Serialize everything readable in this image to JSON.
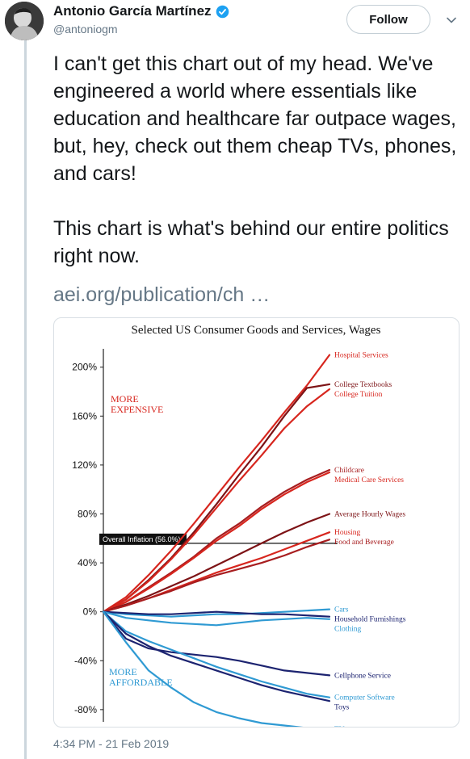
{
  "tweet": {
    "author": {
      "display_name": "Antonio García Martínez",
      "handle": "@antoniogm",
      "avatar_icon": "avatar-portrait",
      "verified_icon": "verified-badge-icon",
      "verified_color": "#1da1f2"
    },
    "follow_label": "Follow",
    "more_icon": "chevron-down-icon",
    "text_paragraphs": [
      "I can't get this chart out of my head. We've engineered a world where essentials like education and healthcare far outpace wages, but, hey, check out them cheap TVs, phones, and cars!",
      "This chart is what's behind our entire politics right now."
    ],
    "link_text": "aei.org/publication/ch …",
    "timestamp": "4:34 PM - 21 Feb 2019"
  },
  "chart_data": {
    "type": "line",
    "title": "Selected US Consumer Goods and Services, Wages",
    "ylim": [
      -90,
      215
    ],
    "yticks": [
      "200%",
      "160%",
      "120%",
      "80%",
      "40%",
      "0%",
      "-40%",
      "-80%"
    ],
    "ytick_values": [
      200,
      160,
      120,
      80,
      40,
      0,
      -40,
      -80
    ],
    "annotations": {
      "more_expensive": [
        "MORE",
        "EXPENSIVE"
      ],
      "more_affordable": [
        "MORE",
        "AFFORDABLE"
      ],
      "inflation_label": "Overall Inflation (56.0%)",
      "inflation_value": 56.0
    },
    "x": [
      0,
      10,
      20,
      30,
      40,
      50,
      60,
      70,
      80,
      90,
      100
    ],
    "series": [
      {
        "name": "Hospital Services",
        "color": "#d7261e",
        "values": [
          0,
          12,
          30,
          50,
          72,
          95,
          118,
          140,
          163,
          185,
          210
        ]
      },
      {
        "name": "College Textbooks",
        "color": "#7d1316",
        "values": [
          0,
          10,
          26,
          44,
          65,
          88,
          112,
          135,
          160,
          183,
          186
        ]
      },
      {
        "name": "College Tuition",
        "color": "#d7261e",
        "values": [
          0,
          10,
          25,
          43,
          63,
          85,
          107,
          128,
          150,
          168,
          182
        ]
      },
      {
        "name": "Childcare",
        "color": "#a71d1f",
        "values": [
          0,
          8,
          20,
          32,
          45,
          60,
          72,
          86,
          98,
          108,
          116
        ]
      },
      {
        "name": "Medical Care Services",
        "color": "#d7261e",
        "values": [
          0,
          8,
          19,
          31,
          44,
          58,
          70,
          84,
          96,
          106,
          114
        ]
      },
      {
        "name": "Average Hourly Wages",
        "color": "#7d1316",
        "values": [
          0,
          6,
          13,
          21,
          29,
          38,
          47,
          56,
          65,
          73,
          80
        ]
      },
      {
        "name": "Housing",
        "color": "#d7261e",
        "values": [
          0,
          5,
          11,
          18,
          25,
          32,
          38,
          44,
          51,
          58,
          65
        ]
      },
      {
        "name": "Food and Beverage",
        "color": "#a71d1f",
        "values": [
          0,
          5,
          11,
          17,
          24,
          30,
          35,
          40,
          46,
          53,
          59
        ]
      },
      {
        "name": "Cars",
        "color": "#2f9ad3",
        "values": [
          0,
          -2,
          -3,
          -4,
          -3,
          -2,
          -2,
          -1,
          0,
          1,
          2
        ]
      },
      {
        "name": "Household Furnishings",
        "color": "#1c2370",
        "values": [
          0,
          -1,
          -2,
          -2,
          -1,
          0,
          -1,
          -2,
          -2,
          -3,
          -4
        ]
      },
      {
        "name": "Clothing",
        "color": "#2f9ad3",
        "values": [
          0,
          -5,
          -7,
          -9,
          -10,
          -11,
          -9,
          -7,
          -6,
          -5,
          -6
        ]
      },
      {
        "name": "Cellphone Service",
        "color": "#1c2370",
        "values": [
          0,
          -22,
          -30,
          -33,
          -35,
          -37,
          -40,
          -44,
          -48,
          -50,
          -52
        ]
      },
      {
        "name": "Computer Software",
        "color": "#2f9ad3",
        "values": [
          0,
          -16,
          -24,
          -31,
          -38,
          -45,
          -51,
          -57,
          -62,
          -67,
          -70
        ]
      },
      {
        "name": "Toys",
        "color": "#1c2370",
        "values": [
          0,
          -18,
          -28,
          -36,
          -42,
          -48,
          -54,
          -60,
          -65,
          -69,
          -73
        ]
      },
      {
        "name": "TVs",
        "color": "#2f9ad3",
        "values": [
          0,
          -25,
          -48,
          -62,
          -74,
          -82,
          -87,
          -91,
          -93,
          -95,
          -96
        ]
      }
    ]
  }
}
